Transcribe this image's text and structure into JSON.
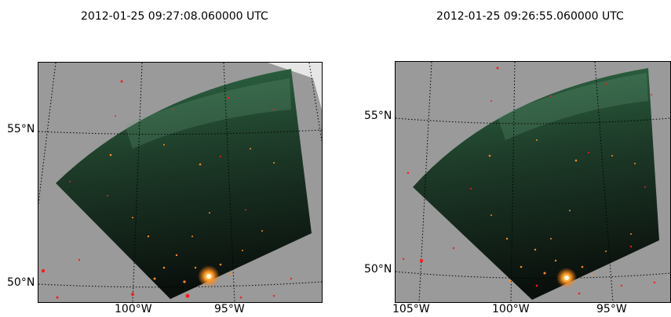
{
  "maps": [
    {
      "title": "2012-01-25 09:27:08.060000 UTC",
      "lat_labels": [
        "55°N",
        "50°N"
      ],
      "lon_labels": [
        "100°W",
        "95°W"
      ]
    },
    {
      "title": "2012-01-25 09:26:55.060000 UTC",
      "lat_labels": [
        "55°N",
        "50°N"
      ],
      "lon_labels": [
        "105°W",
        "100°W",
        "95°W"
      ]
    }
  ],
  "colors": {
    "background_gray": "#9a9a9a",
    "swath_green_top": "#2f6a45",
    "swath_dark_bottom": "#0a100c",
    "city_lights": "#ff7a10",
    "fire_points": "#ff1a1a",
    "gridline": "#000000"
  }
}
